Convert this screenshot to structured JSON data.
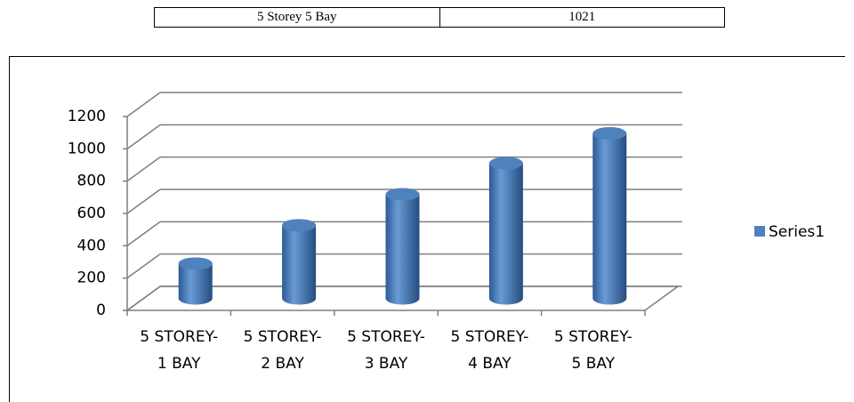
{
  "table": {
    "rows": [
      [
        "5 Storey 5 Bay",
        "1021"
      ]
    ]
  },
  "chart_data": {
    "type": "bar",
    "categories": [
      "5 STOREY-1 BAY",
      "5 STOREY-2 BAY",
      "5 STOREY-3 BAY",
      "5 STOREY-4 BAY",
      "5 STOREY-5 BAY"
    ],
    "series": [
      {
        "name": "Series1",
        "color": "#4f81bd",
        "values": [
          215,
          452,
          644,
          836,
          1021
        ]
      }
    ],
    "ylim": [
      0,
      1200
    ],
    "yticks": [
      0,
      200,
      400,
      600,
      800,
      1000,
      1200
    ],
    "grid": true,
    "legend": "right"
  }
}
